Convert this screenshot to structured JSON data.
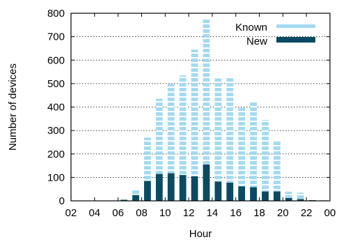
{
  "chart_data": {
    "type": "bar",
    "stacked": true,
    "xlabel": "Hour",
    "ylabel": "Number of devices",
    "ylim": [
      0,
      800
    ],
    "yticks": [
      "0",
      "100",
      "200",
      "300",
      "400",
      "500",
      "600",
      "700",
      "800"
    ],
    "xticks": [
      "02",
      "04",
      "06",
      "08",
      "10",
      "12",
      "14",
      "16",
      "18",
      "20",
      "22",
      "00"
    ],
    "grid": "horizontal-dotted",
    "legend_position": "top-right",
    "categories": [
      "02",
      "03",
      "04",
      "05",
      "06",
      "07",
      "08",
      "09",
      "10",
      "11",
      "12",
      "13",
      "14",
      "15",
      "16",
      "17",
      "18",
      "19",
      "20",
      "21",
      "22",
      "23"
    ],
    "series": [
      {
        "name": "New",
        "color": "#0b4a63",
        "pattern": "solid",
        "values": [
          0,
          0,
          0,
          0,
          5,
          25,
          85,
          115,
          118,
          110,
          105,
          155,
          82,
          78,
          62,
          58,
          40,
          40,
          12,
          8,
          3,
          2
        ]
      },
      {
        "name": "Known",
        "color": "#a3daf2",
        "pattern": "dashed",
        "values": [
          0,
          0,
          0,
          1,
          2,
          20,
          185,
          320,
          380,
          425,
          540,
          620,
          440,
          445,
          335,
          365,
          305,
          217,
          27,
          27,
          5,
          3
        ]
      }
    ],
    "legend": [
      "Known",
      "New"
    ]
  }
}
